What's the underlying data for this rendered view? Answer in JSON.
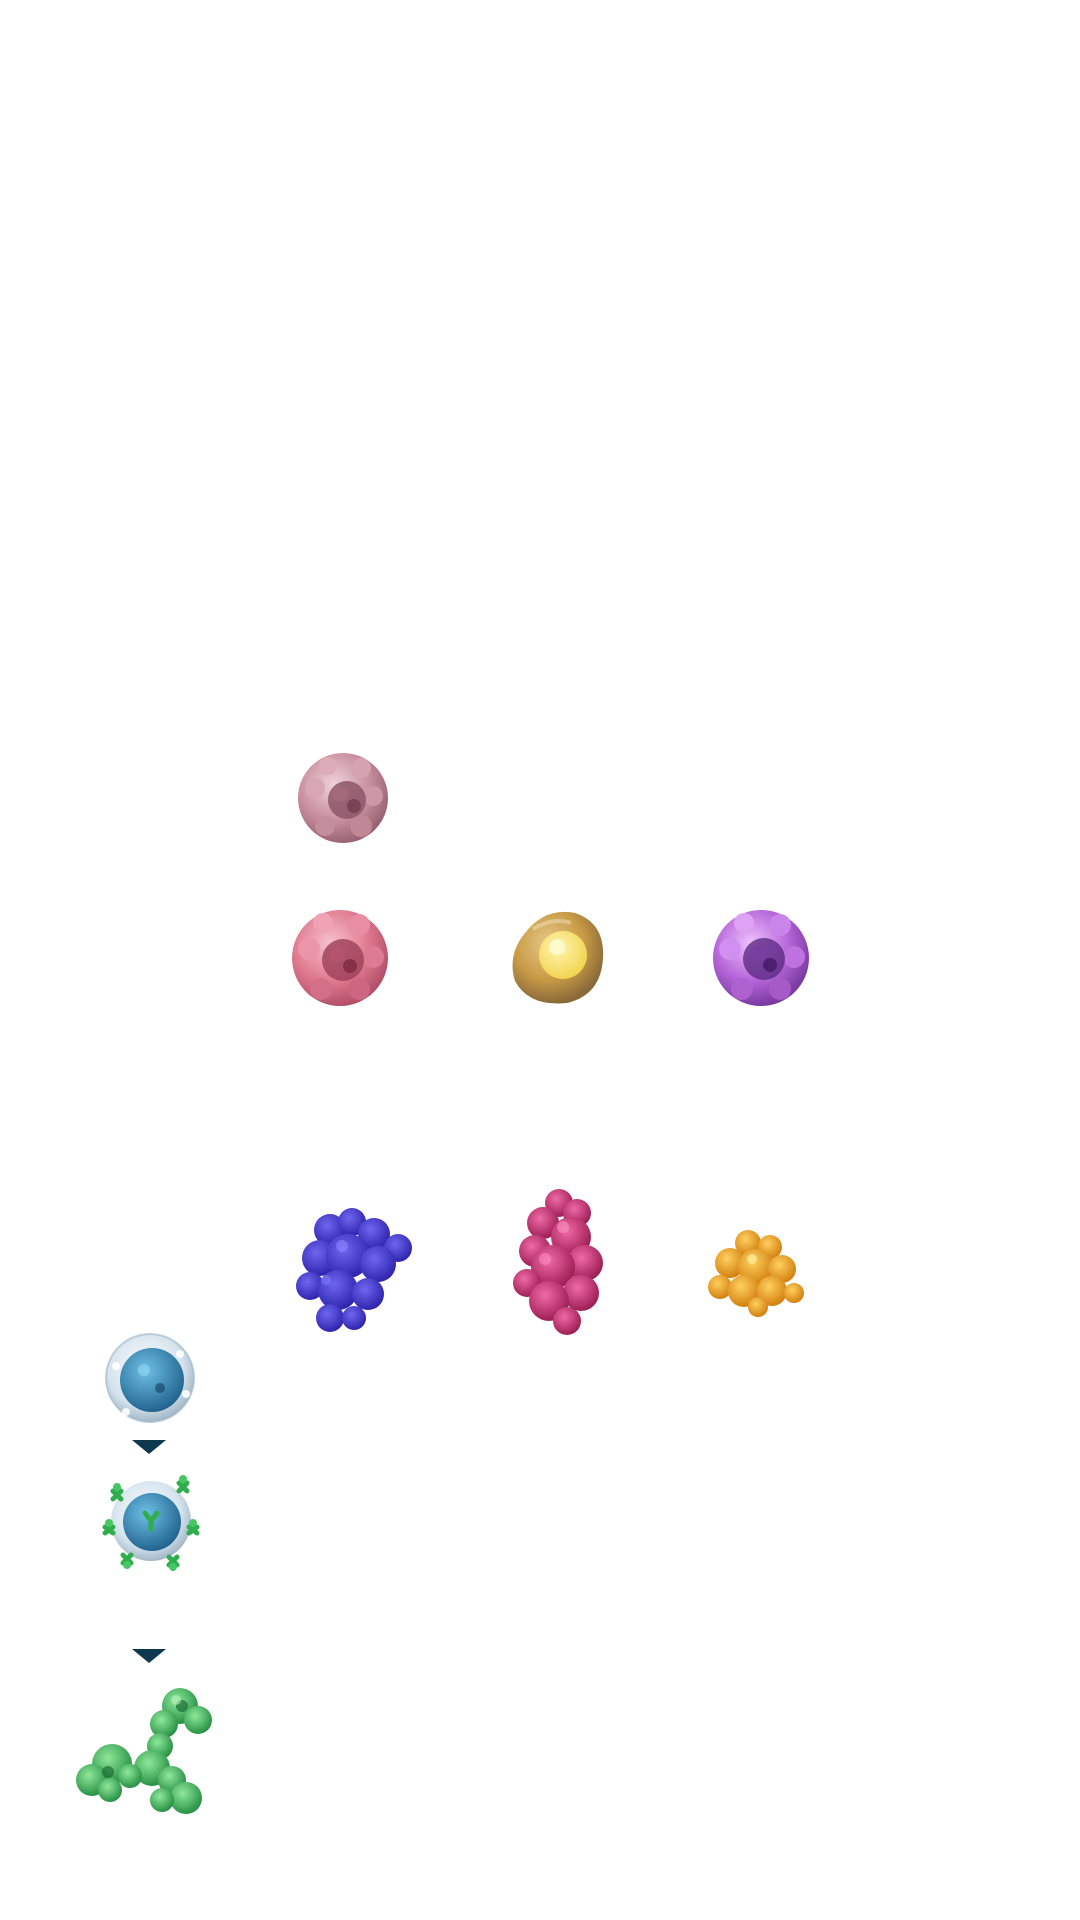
{
  "colors": {
    "background": "#ffffff",
    "arrow": "#0e3750",
    "progenitor_cell": "#c9909f",
    "pink_cell": "#e07a90",
    "yellow_cell": "#c89a45",
    "violet_cell": "#b565d8",
    "blue_protein": "#3d2fd0",
    "magenta_protein": "#c02a6e",
    "orange_protein": "#f09a1a",
    "b_cell": "#2a79a8",
    "antibody": "#2fae4e"
  },
  "illustrations": [
    {
      "icon": "progenitor-cell-icon"
    },
    {
      "icon": "pink-immune-cell-icon"
    },
    {
      "icon": "yellow-nucleus-cell-icon"
    },
    {
      "icon": "violet-immune-cell-icon"
    },
    {
      "icon": "blue-protein-icon"
    },
    {
      "icon": "magenta-protein-icon"
    },
    {
      "icon": "orange-protein-icon"
    },
    {
      "icon": "b-cell-icon"
    },
    {
      "icon": "activated-b-cell-icon"
    },
    {
      "icon": "antibody-molecule-icon"
    }
  ]
}
